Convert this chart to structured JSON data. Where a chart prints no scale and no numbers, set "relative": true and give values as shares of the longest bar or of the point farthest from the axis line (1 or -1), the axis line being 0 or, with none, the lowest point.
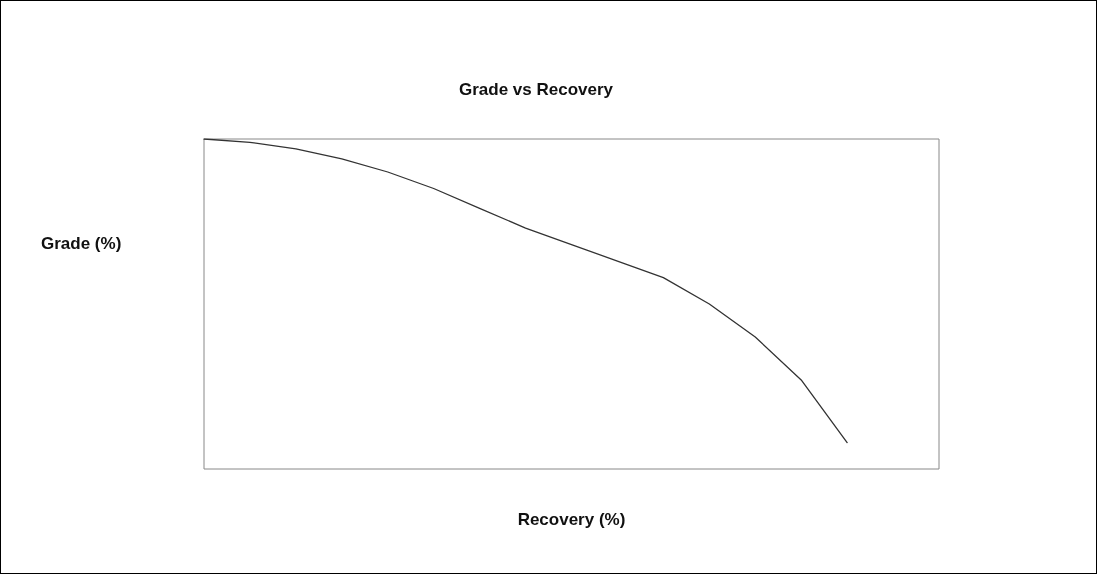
{
  "chart_data": {
    "type": "line",
    "title": "Grade vs Recovery",
    "xlabel": "Recovery (%)",
    "ylabel": "Grade (%)",
    "relative": true,
    "categories": [
      null,
      null,
      null,
      null,
      null,
      null,
      null,
      null,
      null,
      null,
      null,
      null,
      null,
      null,
      null,
      null,
      null
    ],
    "series": [
      {
        "color": "#333333",
        "values": [
          1,
          0.99,
          0.97,
          0.94,
          0.9,
          0.85,
          0.79,
          0.73,
          0.68,
          0.63,
          0.58,
          0.5,
          0.4,
          0.27,
          0.08,
          null,
          null
        ]
      }
    ],
    "grid": false,
    "marker": "none",
    "line_style": "solid"
  }
}
